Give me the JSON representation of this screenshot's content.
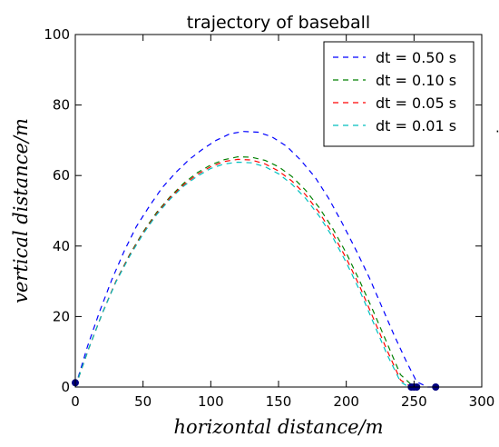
{
  "chart_data": {
    "type": "line",
    "title": "trajectory of baseball",
    "xlabel": "horizontal distance/m",
    "ylabel": "vertical distance/m",
    "xlim": [
      0,
      300
    ],
    "ylim": [
      0,
      100
    ],
    "xticks": [
      "0",
      "50",
      "100",
      "150",
      "200",
      "250",
      "300"
    ],
    "yticks": [
      "0",
      "20",
      "40",
      "60",
      "80",
      "100"
    ],
    "grid": false,
    "legend_position": "top-right",
    "series": [
      {
        "name": "dt = 0.50 s",
        "color": "#0000ff",
        "x": [
          0,
          9,
          18,
          27,
          36,
          45,
          55,
          64,
          74,
          84,
          94,
          104,
          114,
          124,
          135,
          145,
          156,
          166,
          177,
          187,
          197,
          207,
          217,
          226,
          235,
          244,
          252,
          260,
          266
        ],
        "y": [
          0,
          11.5,
          21.5,
          30.5,
          38.5,
          45.5,
          51.5,
          56.5,
          60.8,
          64.5,
          67.5,
          70,
          71.8,
          72.5,
          72.3,
          71,
          68.3,
          64.5,
          59.5,
          53.5,
          46.5,
          39,
          31,
          23,
          15,
          7.5,
          1.5,
          0,
          0
        ]
      },
      {
        "name": "dt = 0.10 s",
        "color": "#008000",
        "x": [
          0,
          10,
          20,
          30,
          40,
          50,
          60,
          70,
          80,
          90,
          100,
          110,
          120,
          130,
          140,
          150,
          160,
          170,
          180,
          190,
          200,
          210,
          220,
          230,
          240,
          250,
          252
        ],
        "y": [
          0,
          11,
          21,
          30,
          37.5,
          44,
          49.5,
          54,
          57.8,
          60.8,
          63,
          64.5,
          65.3,
          65.2,
          64.3,
          62.5,
          59.7,
          55.8,
          50.9,
          45,
          38,
          30,
          21.5,
          12.5,
          3.5,
          0,
          0
        ]
      },
      {
        "name": "dt = 0.05 s",
        "color": "#ff0000",
        "x": [
          0,
          10,
          20,
          30,
          40,
          50,
          60,
          70,
          80,
          90,
          100,
          110,
          120,
          130,
          140,
          150,
          160,
          170,
          180,
          190,
          200,
          210,
          220,
          230,
          240,
          248,
          250
        ],
        "y": [
          0,
          11,
          21,
          30,
          37.3,
          43.7,
          49.2,
          53.7,
          57.4,
          60.3,
          62.5,
          64,
          64.6,
          64.4,
          63.3,
          61.3,
          58.4,
          54.5,
          49.5,
          43.5,
          36.5,
          28.5,
          19.5,
          10.5,
          2,
          0,
          0
        ]
      },
      {
        "name": "dt = 0.01 s",
        "color": "#00bfbf",
        "x": [
          0,
          10,
          20,
          30,
          40,
          50,
          60,
          70,
          80,
          90,
          100,
          110,
          120,
          130,
          140,
          150,
          160,
          170,
          180,
          190,
          200,
          210,
          220,
          230,
          240,
          246,
          248
        ],
        "y": [
          0,
          11,
          21,
          29.8,
          37,
          43.4,
          48.9,
          53.3,
          57,
          59.8,
          62,
          63.3,
          63.8,
          63.6,
          62.5,
          60.5,
          57.5,
          53.5,
          48.5,
          42.5,
          35.3,
          27.3,
          18.3,
          9.3,
          1.5,
          0,
          0
        ]
      }
    ],
    "markers": [
      {
        "x": 0,
        "y": 1.2,
        "color": "#000080"
      },
      {
        "x": 248,
        "y": 0,
        "color": "#000080"
      },
      {
        "x": 250,
        "y": 0,
        "color": "#000080"
      },
      {
        "x": 252,
        "y": 0,
        "color": "#000080"
      },
      {
        "x": 266,
        "y": 0,
        "color": "#000080"
      }
    ]
  }
}
